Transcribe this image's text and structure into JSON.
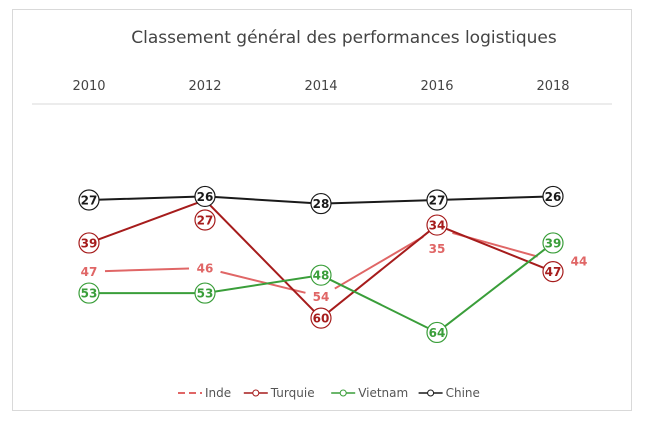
{
  "chart_data": {
    "type": "line",
    "title": "Classement général des performances logistiques",
    "categories": [
      "2010",
      "2012",
      "2014",
      "2016",
      "2018"
    ],
    "y_inverted": true,
    "ylim": [
      22,
      68
    ],
    "x_axis_position": "top",
    "grid": false,
    "legend_position": "bottom",
    "series": [
      {
        "name": "Inde",
        "values": [
          47,
          46,
          54,
          35,
          44
        ],
        "color": "#e06666",
        "dash": true,
        "markers": false
      },
      {
        "name": "Turquie",
        "values": [
          39,
          27,
          60,
          34,
          47
        ],
        "color": "#a61c1c",
        "markers": true
      },
      {
        "name": "Vietnam",
        "values": [
          53,
          53,
          48,
          64,
          39
        ],
        "color": "#3a9e3a",
        "markers": true
      },
      {
        "name": "Chine",
        "values": [
          27,
          26,
          28,
          27,
          26
        ],
        "color": "#1a1a1a",
        "markers": true
      }
    ]
  }
}
